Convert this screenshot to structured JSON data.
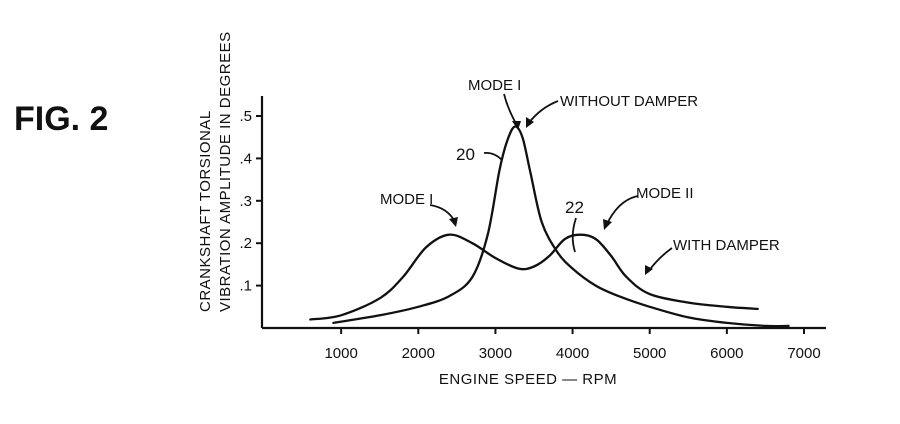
{
  "figure": {
    "label": "FIG. 2"
  },
  "chart_data": {
    "type": "line",
    "xlabel": "ENGINE SPEED — RPM",
    "ylabel_line1": "CRANKSHAFT TORSIONAL",
    "ylabel_line2": "VIBRATION AMPLITUDE IN DEGREES",
    "xlim": [
      0,
      7000
    ],
    "ylim": [
      0,
      0.5
    ],
    "x_ticks": [
      1000,
      2000,
      3000,
      4000,
      5000,
      6000,
      7000
    ],
    "x_tick_labels": [
      "1000",
      "2000",
      "3000",
      "4000",
      "5000",
      "6000",
      "7000"
    ],
    "y_ticks": [
      0.1,
      0.2,
      0.3,
      0.4,
      0.5
    ],
    "y_tick_labels": [
      ".1",
      ".2",
      ".3",
      ".4",
      ".5"
    ],
    "grid": false,
    "series": [
      {
        "name": "WITHOUT DAMPER",
        "ref": "20",
        "x": [
          900,
          1500,
          2000,
          2400,
          2700,
          2900,
          3050,
          3150,
          3250,
          3350,
          3450,
          3600,
          3800,
          4000,
          4300,
          4600,
          5000,
          5500,
          6000,
          6500,
          6800
        ],
        "y": [
          0.012,
          0.03,
          0.05,
          0.075,
          0.12,
          0.22,
          0.37,
          0.44,
          0.475,
          0.45,
          0.37,
          0.25,
          0.18,
          0.14,
          0.1,
          0.075,
          0.05,
          0.025,
          0.012,
          0.005,
          0.005
        ]
      },
      {
        "name": "WITH DAMPER",
        "ref": "22",
        "x": [
          600,
          1000,
          1500,
          1800,
          2100,
          2400,
          2700,
          3000,
          3300,
          3500,
          3700,
          3900,
          4100,
          4300,
          4500,
          4700,
          5000,
          5500,
          6000,
          6400
        ],
        "y": [
          0.02,
          0.03,
          0.07,
          0.12,
          0.19,
          0.22,
          0.2,
          0.165,
          0.14,
          0.145,
          0.17,
          0.21,
          0.22,
          0.21,
          0.17,
          0.12,
          0.08,
          0.06,
          0.05,
          0.045
        ]
      }
    ],
    "annotations": [
      {
        "text": "MODE I",
        "x": 3250,
        "y": 0.475,
        "series": "WITHOUT DAMPER"
      },
      {
        "text": "WITHOUT DAMPER",
        "x": 3250,
        "y": 0.475,
        "series": "WITHOUT DAMPER"
      },
      {
        "text": "20",
        "x": 2900,
        "y": 0.3,
        "series": "WITHOUT DAMPER"
      },
      {
        "text": "MODE I",
        "x": 2400,
        "y": 0.22,
        "series": "WITH DAMPER"
      },
      {
        "text": "22",
        "x": 3800,
        "y": 0.18,
        "series": "WITH DAMPER"
      },
      {
        "text": "MODE II",
        "x": 4200,
        "y": 0.22,
        "series": "WITH DAMPER"
      },
      {
        "text": "WITH DAMPER",
        "x": 4700,
        "y": 0.12,
        "series": "WITH DAMPER"
      }
    ]
  }
}
